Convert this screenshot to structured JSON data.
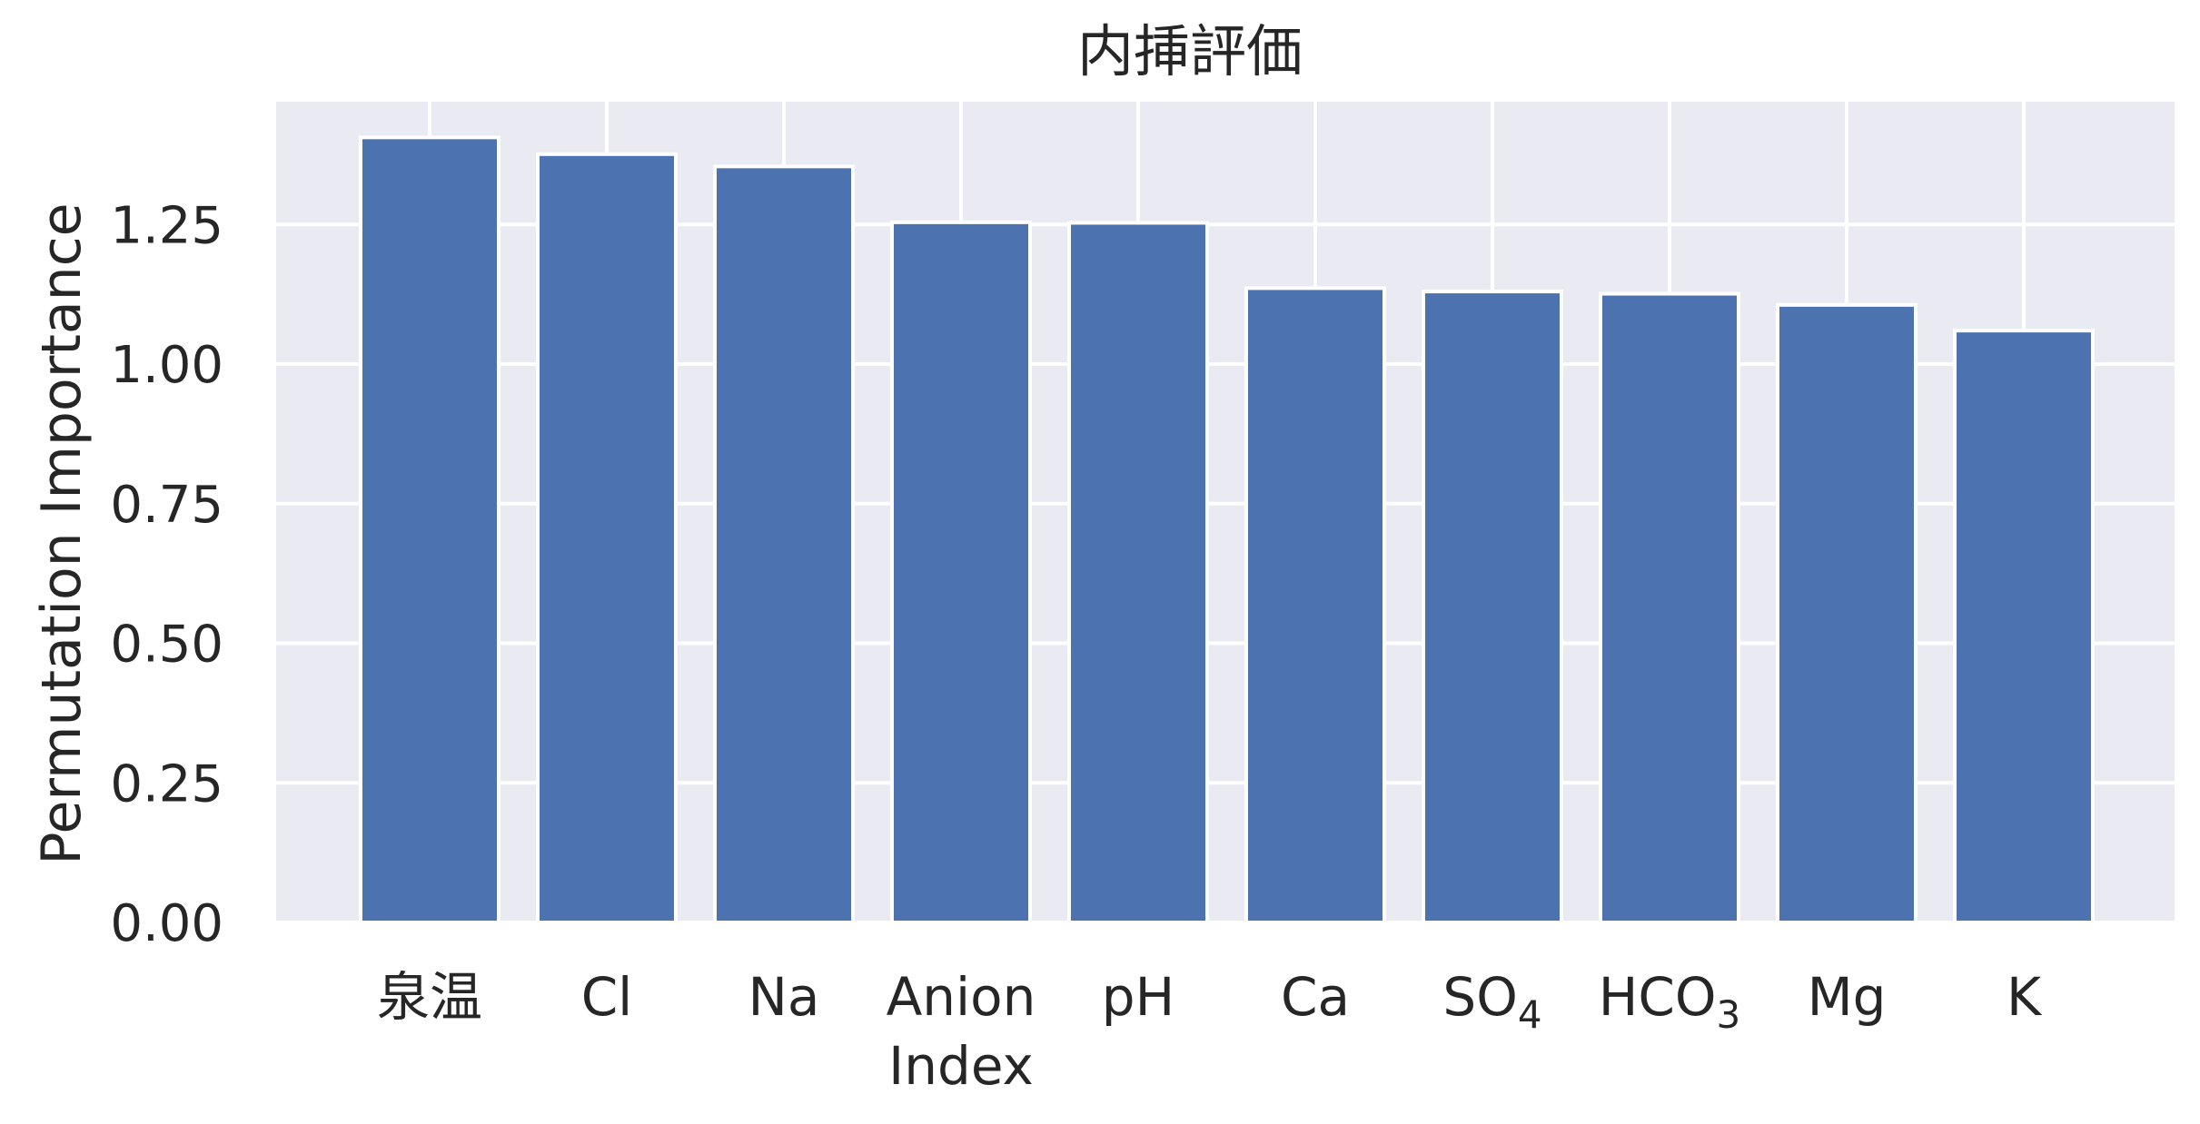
{
  "chart_data": {
    "type": "bar",
    "title": "内挿評価",
    "xlabel": "",
    "ylabel": "Permutation Importance",
    "categories": [
      {
        "label": "泉温"
      },
      {
        "label": "Cl"
      },
      {
        "label": "Na"
      },
      {
        "label": "Anion",
        "label_line2": "Index"
      },
      {
        "label": "pH"
      },
      {
        "label": "Ca"
      },
      {
        "label": "SO",
        "sub": "4"
      },
      {
        "label": "HCO",
        "sub": "3"
      },
      {
        "label": "Mg"
      },
      {
        "label": "K"
      }
    ],
    "values": [
      1.406,
      1.376,
      1.354,
      1.254,
      1.253,
      1.136,
      1.13,
      1.126,
      1.106,
      1.06
    ],
    "ylim": [
      0,
      1.47
    ],
    "yticks": [
      "0.00",
      "0.25",
      "0.50",
      "0.75",
      "1.00",
      "1.25"
    ],
    "ytick_values": [
      0,
      0.25,
      0.5,
      0.75,
      1.0,
      1.25
    ],
    "grid": true,
    "colors": {
      "bar": "#4c72b0",
      "plot_background": "#eaeaf2",
      "grid": "#ffffff",
      "text": "#262626"
    }
  }
}
